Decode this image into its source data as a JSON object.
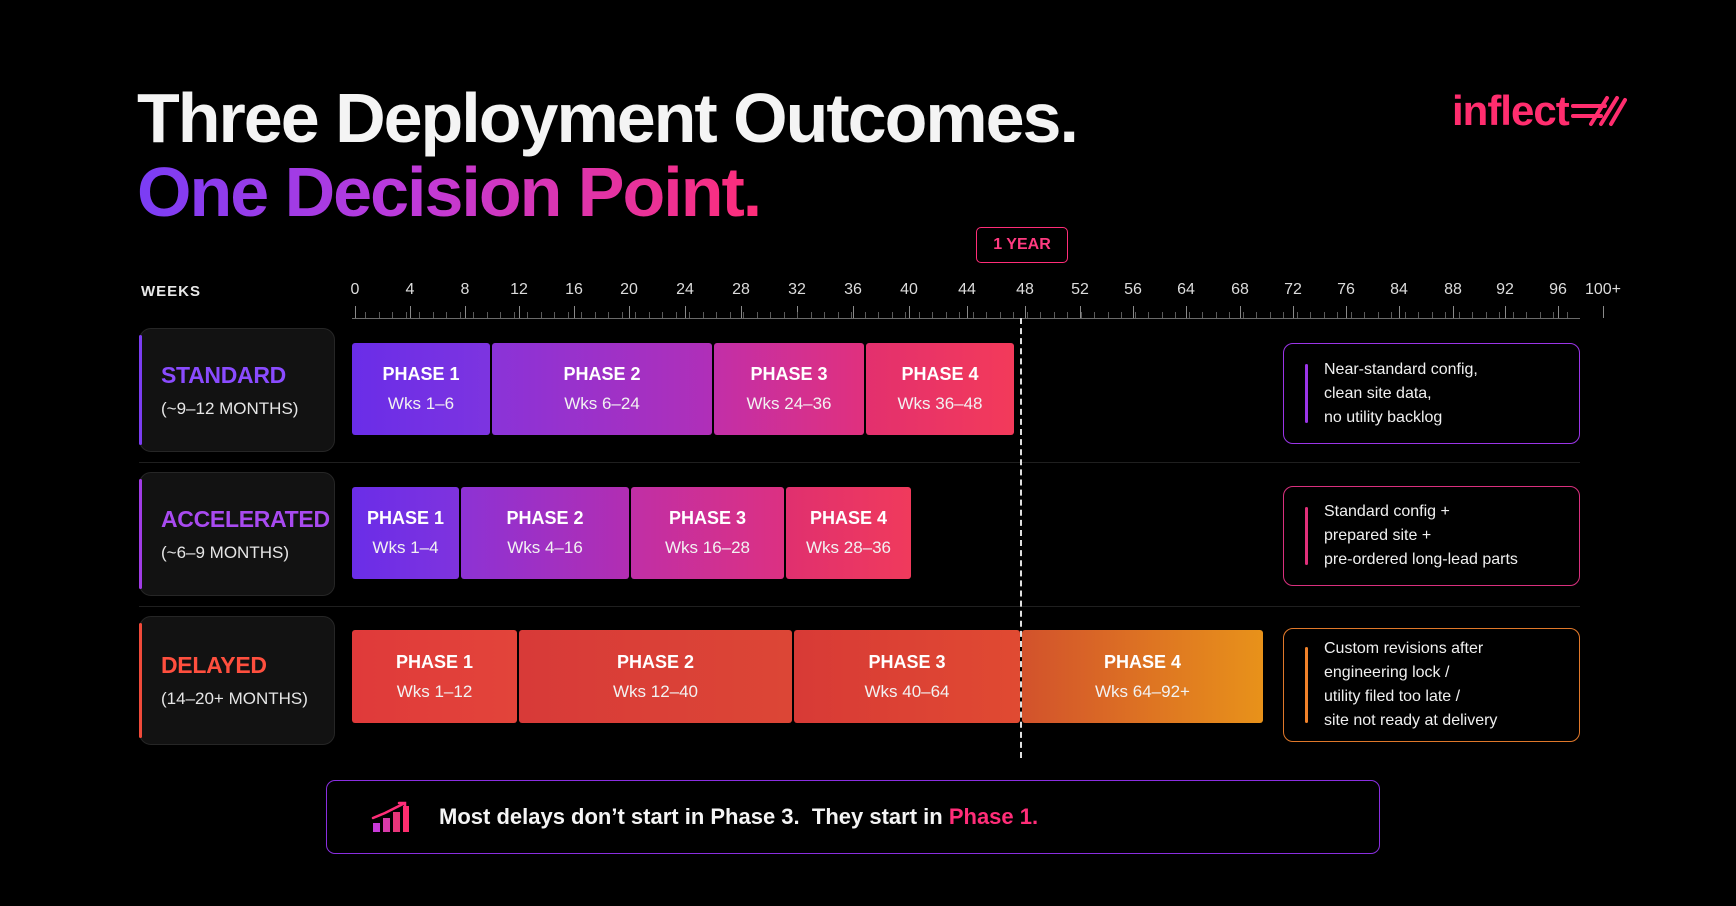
{
  "title": {
    "line1": "Three Deployment Outcomes.",
    "line2": "One Decision Point."
  },
  "brand": {
    "logo_text": "inflect",
    "color": "#ff2d6e",
    "icon": "triple-slash-arrow-icon"
  },
  "chart_data": {
    "type": "gantt",
    "x_axis_label": "WEEKS",
    "x_ticks": [
      "0",
      "4",
      "8",
      "12",
      "16",
      "20",
      "24",
      "28",
      "32",
      "36",
      "40",
      "44",
      "48",
      "52",
      "56",
      "64",
      "68",
      "72",
      "76",
      "84",
      "88",
      "92",
      "96",
      "100+"
    ],
    "marker": {
      "label": "1 YEAR",
      "week": 52
    },
    "rows": [
      {
        "name": "STANDARD",
        "duration": "(~9–12 MONTHS)",
        "color": "#7b3df2",
        "phases": [
          {
            "label": "PHASE 1",
            "weeks": "Wks 1–6"
          },
          {
            "label": "PHASE 2",
            "weeks": "Wks 6–24"
          },
          {
            "label": "PHASE 3",
            "weeks": "Wks 24–36"
          },
          {
            "label": "PHASE 4",
            "weeks": "Wks 36–48"
          }
        ],
        "note": [
          "Near-standard config,",
          "clean site data,",
          "no utility backlog"
        ]
      },
      {
        "name": "ACCELERATED",
        "duration": "(~6–9 MONTHS)",
        "color": "#a13ce6",
        "phases": [
          {
            "label": "PHASE 1",
            "weeks": "Wks 1–4"
          },
          {
            "label": "PHASE 2",
            "weeks": "Wks 4–16"
          },
          {
            "label": "PHASE 3",
            "weeks": "Wks 16–28"
          },
          {
            "label": "PHASE 4",
            "weeks": "Wks 28–36"
          }
        ],
        "note": [
          "Standard config +",
          "prepared site +",
          "pre-ordered long-lead parts"
        ]
      },
      {
        "name": "DELAYED",
        "duration": "(14–20+ MONTHS)",
        "color": "#f04a3a",
        "phases": [
          {
            "label": "PHASE 1",
            "weeks": "Wks 1–12"
          },
          {
            "label": "PHASE 2",
            "weeks": "Wks 12–40"
          },
          {
            "label": "PHASE 3",
            "weeks": "Wks 40–64"
          },
          {
            "label": "PHASE 4",
            "weeks": "Wks 64–92+"
          }
        ],
        "note": [
          "Custom revisions after",
          "engineering lock /",
          "utility filed too late /",
          "site not ready at delivery"
        ]
      }
    ]
  },
  "footer": {
    "icon": "bar-chart-growth-icon",
    "text_before": "Most delays don’t start in Phase 3.",
    "text_middle": "They start in",
    "highlight": "Phase 1."
  }
}
